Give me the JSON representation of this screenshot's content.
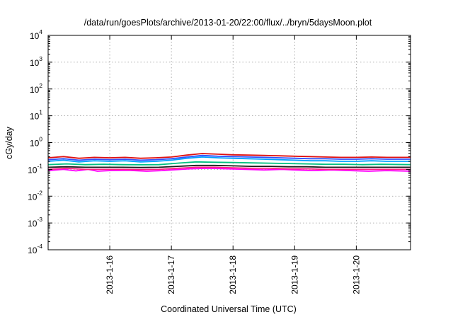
{
  "chart_data": {
    "type": "line",
    "title": "/data/run/goesPlots/archive/2013-01-20/22:00/flux/../bryn/5daysMoon.plot",
    "xlabel": "Coordinated Universal Time (UTC)",
    "ylabel": "cGy/day",
    "yscale": "log",
    "ylim": [
      0.0001,
      10000
    ],
    "xlim": [
      0,
      5.88
    ],
    "x_unit": "days since 2013-1-15 00:00 UTC",
    "y_ticks": [
      {
        "base": "10",
        "exp": "-4",
        "value": 0.0001
      },
      {
        "base": "10",
        "exp": "-3",
        "value": 0.001
      },
      {
        "base": "10",
        "exp": "-2",
        "value": 0.01
      },
      {
        "base": "10",
        "exp": "-1",
        "value": 0.1
      },
      {
        "base": "10",
        "exp": "0",
        "value": 1
      },
      {
        "base": "10",
        "exp": "1",
        "value": 10
      },
      {
        "base": "10",
        "exp": "2",
        "value": 100
      },
      {
        "base": "10",
        "exp": "3",
        "value": 1000
      },
      {
        "base": "10",
        "exp": "4",
        "value": 10000
      }
    ],
    "x_ticks": [
      {
        "label": "2013-1-16",
        "value": 1
      },
      {
        "label": "2013-1-17",
        "value": 2
      },
      {
        "label": "2013-1-18",
        "value": 3
      },
      {
        "label": "2013-1-19",
        "value": 4
      },
      {
        "label": "2013-1-20",
        "value": 5
      }
    ],
    "grid": true,
    "series": [
      {
        "name": "",
        "color": "#ff00ff",
        "values": [
          {
            "x": 0.0,
            "y": 0.09
          },
          {
            "x": 0.25,
            "y": 0.1
          },
          {
            "x": 0.45,
            "y": 0.088
          },
          {
            "x": 0.65,
            "y": 0.1
          },
          {
            "x": 0.8,
            "y": 0.085
          },
          {
            "x": 1.0,
            "y": 0.09
          },
          {
            "x": 1.3,
            "y": 0.092
          },
          {
            "x": 1.6,
            "y": 0.085
          },
          {
            "x": 1.85,
            "y": 0.09
          },
          {
            "x": 2.0,
            "y": 0.095
          },
          {
            "x": 2.3,
            "y": 0.105
          },
          {
            "x": 2.6,
            "y": 0.11
          },
          {
            "x": 2.9,
            "y": 0.105
          },
          {
            "x": 3.2,
            "y": 0.1
          },
          {
            "x": 3.5,
            "y": 0.095
          },
          {
            "x": 3.8,
            "y": 0.1
          },
          {
            "x": 4.0,
            "y": 0.095
          },
          {
            "x": 4.3,
            "y": 0.09
          },
          {
            "x": 4.6,
            "y": 0.095
          },
          {
            "x": 4.9,
            "y": 0.09
          },
          {
            "x": 5.2,
            "y": 0.085
          },
          {
            "x": 5.5,
            "y": 0.09
          },
          {
            "x": 5.88,
            "y": 0.085
          }
        ]
      },
      {
        "name": "",
        "color": "#ff2080",
        "values": [
          {
            "x": 0.0,
            "y": 0.1
          },
          {
            "x": 0.3,
            "y": 0.11
          },
          {
            "x": 0.6,
            "y": 0.1
          },
          {
            "x": 0.9,
            "y": 0.1
          },
          {
            "x": 1.2,
            "y": 0.1
          },
          {
            "x": 1.5,
            "y": 0.098
          },
          {
            "x": 1.8,
            "y": 0.1
          },
          {
            "x": 2.1,
            "y": 0.11
          },
          {
            "x": 2.4,
            "y": 0.12
          },
          {
            "x": 2.7,
            "y": 0.12
          },
          {
            "x": 3.0,
            "y": 0.115
          },
          {
            "x": 3.3,
            "y": 0.11
          },
          {
            "x": 3.6,
            "y": 0.11
          },
          {
            "x": 3.9,
            "y": 0.105
          },
          {
            "x": 4.2,
            "y": 0.105
          },
          {
            "x": 4.5,
            "y": 0.1
          },
          {
            "x": 4.8,
            "y": 0.1
          },
          {
            "x": 5.1,
            "y": 0.1
          },
          {
            "x": 5.4,
            "y": 0.1
          },
          {
            "x": 5.88,
            "y": 0.1
          }
        ]
      },
      {
        "name": "",
        "color": "#1a1a1a",
        "values": [
          {
            "x": 0.0,
            "y": 0.12
          },
          {
            "x": 0.3,
            "y": 0.125
          },
          {
            "x": 0.6,
            "y": 0.12
          },
          {
            "x": 0.9,
            "y": 0.12
          },
          {
            "x": 1.2,
            "y": 0.12
          },
          {
            "x": 1.5,
            "y": 0.118
          },
          {
            "x": 1.8,
            "y": 0.12
          },
          {
            "x": 2.1,
            "y": 0.13
          },
          {
            "x": 2.4,
            "y": 0.14
          },
          {
            "x": 2.7,
            "y": 0.14
          },
          {
            "x": 3.0,
            "y": 0.135
          },
          {
            "x": 3.3,
            "y": 0.13
          },
          {
            "x": 3.6,
            "y": 0.13
          },
          {
            "x": 3.9,
            "y": 0.125
          },
          {
            "x": 4.2,
            "y": 0.125
          },
          {
            "x": 4.5,
            "y": 0.12
          },
          {
            "x": 4.8,
            "y": 0.12
          },
          {
            "x": 5.1,
            "y": 0.12
          },
          {
            "x": 5.4,
            "y": 0.12
          },
          {
            "x": 5.88,
            "y": 0.12
          }
        ]
      },
      {
        "name": "",
        "color": "#00c080",
        "values": [
          {
            "x": 0.0,
            "y": 0.15
          },
          {
            "x": 0.3,
            "y": 0.16
          },
          {
            "x": 0.6,
            "y": 0.15
          },
          {
            "x": 0.9,
            "y": 0.155
          },
          {
            "x": 1.2,
            "y": 0.15
          },
          {
            "x": 1.5,
            "y": 0.148
          },
          {
            "x": 1.8,
            "y": 0.15
          },
          {
            "x": 2.1,
            "y": 0.17
          },
          {
            "x": 2.4,
            "y": 0.19
          },
          {
            "x": 2.7,
            "y": 0.185
          },
          {
            "x": 3.0,
            "y": 0.18
          },
          {
            "x": 3.3,
            "y": 0.175
          },
          {
            "x": 3.6,
            "y": 0.17
          },
          {
            "x": 3.9,
            "y": 0.165
          },
          {
            "x": 4.2,
            "y": 0.16
          },
          {
            "x": 4.5,
            "y": 0.155
          },
          {
            "x": 4.8,
            "y": 0.155
          },
          {
            "x": 5.1,
            "y": 0.15
          },
          {
            "x": 5.4,
            "y": 0.155
          },
          {
            "x": 5.88,
            "y": 0.15
          }
        ]
      },
      {
        "name": "",
        "color": "#00a0ff",
        "values": [
          {
            "x": 0.0,
            "y": 0.2
          },
          {
            "x": 0.25,
            "y": 0.22
          },
          {
            "x": 0.5,
            "y": 0.19
          },
          {
            "x": 0.75,
            "y": 0.21
          },
          {
            "x": 1.0,
            "y": 0.2
          },
          {
            "x": 1.25,
            "y": 0.21
          },
          {
            "x": 1.5,
            "y": 0.19
          },
          {
            "x": 1.75,
            "y": 0.2
          },
          {
            "x": 2.0,
            "y": 0.22
          },
          {
            "x": 2.25,
            "y": 0.26
          },
          {
            "x": 2.5,
            "y": 0.29
          },
          {
            "x": 2.75,
            "y": 0.27
          },
          {
            "x": 3.0,
            "y": 0.26
          },
          {
            "x": 3.25,
            "y": 0.25
          },
          {
            "x": 3.5,
            "y": 0.24
          },
          {
            "x": 3.75,
            "y": 0.23
          },
          {
            "x": 4.0,
            "y": 0.22
          },
          {
            "x": 4.25,
            "y": 0.21
          },
          {
            "x": 4.5,
            "y": 0.21
          },
          {
            "x": 4.75,
            "y": 0.2
          },
          {
            "x": 5.0,
            "y": 0.2
          },
          {
            "x": 5.25,
            "y": 0.21
          },
          {
            "x": 5.5,
            "y": 0.2
          },
          {
            "x": 5.88,
            "y": 0.2
          }
        ]
      },
      {
        "name": "",
        "color": "#3050ff",
        "values": [
          {
            "x": 0.0,
            "y": 0.23
          },
          {
            "x": 0.25,
            "y": 0.25
          },
          {
            "x": 0.5,
            "y": 0.22
          },
          {
            "x": 0.75,
            "y": 0.24
          },
          {
            "x": 1.0,
            "y": 0.23
          },
          {
            "x": 1.25,
            "y": 0.24
          },
          {
            "x": 1.5,
            "y": 0.22
          },
          {
            "x": 1.75,
            "y": 0.23
          },
          {
            "x": 2.0,
            "y": 0.25
          },
          {
            "x": 2.25,
            "y": 0.29
          },
          {
            "x": 2.5,
            "y": 0.33
          },
          {
            "x": 2.75,
            "y": 0.31
          },
          {
            "x": 3.0,
            "y": 0.3
          },
          {
            "x": 3.25,
            "y": 0.29
          },
          {
            "x": 3.5,
            "y": 0.28
          },
          {
            "x": 3.75,
            "y": 0.27
          },
          {
            "x": 4.0,
            "y": 0.26
          },
          {
            "x": 4.25,
            "y": 0.25
          },
          {
            "x": 4.5,
            "y": 0.25
          },
          {
            "x": 4.75,
            "y": 0.24
          },
          {
            "x": 5.0,
            "y": 0.24
          },
          {
            "x": 5.25,
            "y": 0.25
          },
          {
            "x": 5.5,
            "y": 0.24
          },
          {
            "x": 5.88,
            "y": 0.24
          }
        ]
      },
      {
        "name": "",
        "color": "#e01010",
        "values": [
          {
            "x": 0.0,
            "y": 0.27
          },
          {
            "x": 0.25,
            "y": 0.3
          },
          {
            "x": 0.5,
            "y": 0.26
          },
          {
            "x": 0.75,
            "y": 0.28
          },
          {
            "x": 1.0,
            "y": 0.27
          },
          {
            "x": 1.25,
            "y": 0.28
          },
          {
            "x": 1.5,
            "y": 0.26
          },
          {
            "x": 1.75,
            "y": 0.27
          },
          {
            "x": 2.0,
            "y": 0.29
          },
          {
            "x": 2.25,
            "y": 0.34
          },
          {
            "x": 2.5,
            "y": 0.39
          },
          {
            "x": 2.75,
            "y": 0.37
          },
          {
            "x": 3.0,
            "y": 0.35
          },
          {
            "x": 3.25,
            "y": 0.34
          },
          {
            "x": 3.5,
            "y": 0.33
          },
          {
            "x": 3.75,
            "y": 0.32
          },
          {
            "x": 4.0,
            "y": 0.31
          },
          {
            "x": 4.25,
            "y": 0.3
          },
          {
            "x": 4.5,
            "y": 0.29
          },
          {
            "x": 4.75,
            "y": 0.28
          },
          {
            "x": 5.0,
            "y": 0.28
          },
          {
            "x": 5.25,
            "y": 0.29
          },
          {
            "x": 5.5,
            "y": 0.28
          },
          {
            "x": 5.88,
            "y": 0.28
          }
        ]
      }
    ]
  }
}
